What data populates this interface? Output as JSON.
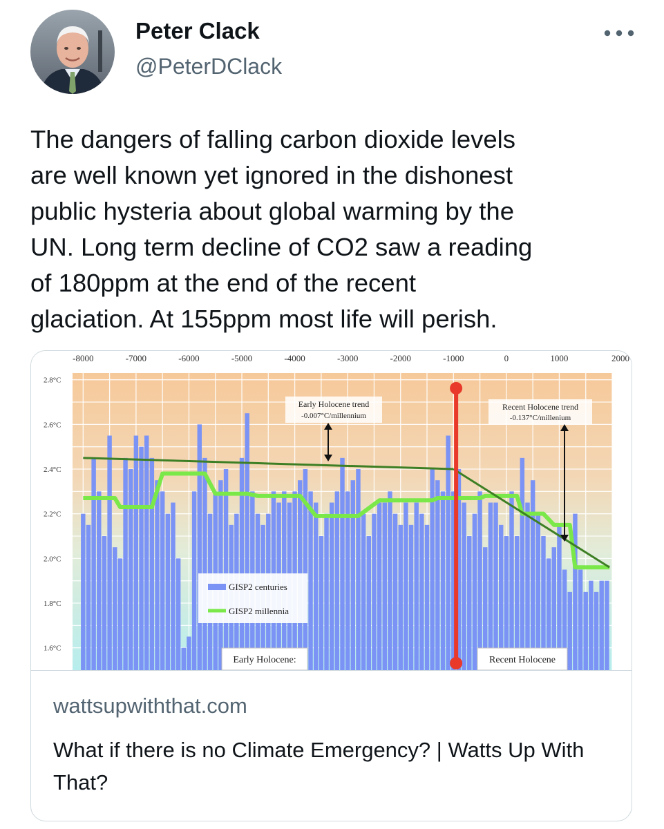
{
  "author": {
    "name": "Peter Clack",
    "handle": "@PeterDClack"
  },
  "tweet": {
    "text": "The dangers of falling carbon dioxide levels\nare well known yet ignored in the dishonest\npublic hysteria about global warming by the\nUN. Long term decline of CO2 saw a reading\nof 180ppm at the end of the recent\nglaciation. At 155ppm most life will perish."
  },
  "card": {
    "domain": "wattsupwiththat.com",
    "title": "What if there is no Climate Emergency? | Watts Up With That?"
  },
  "icons": {
    "more": "more-horizontal-icon",
    "avatar": "avatar-photo"
  },
  "colors": {
    "bars": "#7b93f5",
    "millennia": "#7be84a",
    "trend": "#3d7f24",
    "divider": "#e8392a",
    "text": "#0f1419",
    "secondary": "#536471"
  },
  "chart_data": {
    "type": "bar",
    "x_ticks": [
      "-8000",
      "-7000",
      "-6000",
      "-5000",
      "-4000",
      "-3000",
      "-2000",
      "-1000",
      "0",
      "1000",
      "2000"
    ],
    "y_ticks": [
      "2.8°C",
      "2.6°C",
      "2.4°C",
      "2.2°C",
      "2.0°C",
      "1.8°C",
      "1.6°C"
    ],
    "xlim": [
      -8200,
      2000
    ],
    "ylim": [
      1.5,
      2.83
    ],
    "legend": [
      {
        "label": "GISP2 centuries",
        "type": "bar"
      },
      {
        "label": "GISP2 millennia",
        "type": "line"
      }
    ],
    "annotations": {
      "early_trend": {
        "line1": "Early Holocene trend",
        "line2": "-0.007°C/millennium"
      },
      "recent_trend": {
        "line1": "Recent Holocene trend",
        "line2": "-0.137°C/millenium"
      },
      "early_label": "Early Holocene:",
      "recent_label": "Recent Holocene"
    },
    "divider_year": -950,
    "early_trend_line": {
      "x": [
        -8000,
        -1000
      ],
      "y": [
        2.45,
        2.4
      ]
    },
    "recent_trend_line": {
      "x": [
        -1000,
        1950
      ],
      "y": [
        2.4,
        1.96
      ]
    },
    "series": [
      {
        "name": "GISP2 centuries",
        "x": [
          -8000,
          -7900,
          -7800,
          -7700,
          -7600,
          -7500,
          -7400,
          -7300,
          -7200,
          -7100,
          -7000,
          -6900,
          -6800,
          -6700,
          -6600,
          -6500,
          -6400,
          -6300,
          -6200,
          -6100,
          -6000,
          -5900,
          -5800,
          -5700,
          -5600,
          -5500,
          -5400,
          -5300,
          -5200,
          -5100,
          -5000,
          -4900,
          -4800,
          -4700,
          -4600,
          -4500,
          -4400,
          -4300,
          -4200,
          -4100,
          -4000,
          -3900,
          -3800,
          -3700,
          -3600,
          -3500,
          -3400,
          -3300,
          -3200,
          -3100,
          -3000,
          -2900,
          -2800,
          -2700,
          -2600,
          -2500,
          -2400,
          -2300,
          -2200,
          -2100,
          -2000,
          -1900,
          -1800,
          -1700,
          -1600,
          -1500,
          -1400,
          -1300,
          -1200,
          -1100,
          -1000,
          -900,
          -800,
          -700,
          -600,
          -500,
          -400,
          -300,
          -200,
          -100,
          0,
          100,
          200,
          300,
          400,
          500,
          600,
          700,
          800,
          900,
          1000,
          1100,
          1200,
          1300,
          1400,
          1500,
          1600,
          1700,
          1800,
          1900
        ],
        "values": [
          2.2,
          2.15,
          2.45,
          2.3,
          2.1,
          2.55,
          2.05,
          2.0,
          2.45,
          2.4,
          2.55,
          2.5,
          2.55,
          2.45,
          2.35,
          2.3,
          2.2,
          2.25,
          2.0,
          1.6,
          1.65,
          2.3,
          2.6,
          2.45,
          2.2,
          2.3,
          2.35,
          2.4,
          2.15,
          2.2,
          2.45,
          2.65,
          2.3,
          2.2,
          2.15,
          2.2,
          2.3,
          2.25,
          2.3,
          2.25,
          2.3,
          2.35,
          2.4,
          2.3,
          2.25,
          2.1,
          2.2,
          2.25,
          2.3,
          2.45,
          2.3,
          2.35,
          2.4,
          2.2,
          2.1,
          2.2,
          2.25,
          2.25,
          2.3,
          2.2,
          2.15,
          2.25,
          2.15,
          2.25,
          2.2,
          2.15,
          2.4,
          2.35,
          2.3,
          2.55,
          2.3,
          2.4,
          2.25,
          2.1,
          2.2,
          2.3,
          2.05,
          2.25,
          2.25,
          2.15,
          2.1,
          2.3,
          2.1,
          2.45,
          2.25,
          2.35,
          2.2,
          2.1,
          2.0,
          2.05,
          2.15,
          1.95,
          1.85,
          2.2,
          1.95,
          1.85,
          1.9,
          1.85,
          1.9,
          1.9
        ]
      },
      {
        "name": "GISP2 millennia",
        "x": [
          -8000,
          -7400,
          -7300,
          -6700,
          -6500,
          -5700,
          -5500,
          -4900,
          -4700,
          -3900,
          -3600,
          -2800,
          -2400,
          -1400,
          -1300,
          -500,
          -400,
          200,
          300,
          700,
          900,
          1200,
          1300,
          1950
        ],
        "values": [
          2.27,
          2.27,
          2.23,
          2.23,
          2.38,
          2.38,
          2.29,
          2.29,
          2.28,
          2.28,
          2.19,
          2.19,
          2.26,
          2.26,
          2.27,
          2.27,
          2.28,
          2.28,
          2.2,
          2.2,
          2.15,
          2.15,
          1.96,
          1.96
        ]
      }
    ]
  }
}
